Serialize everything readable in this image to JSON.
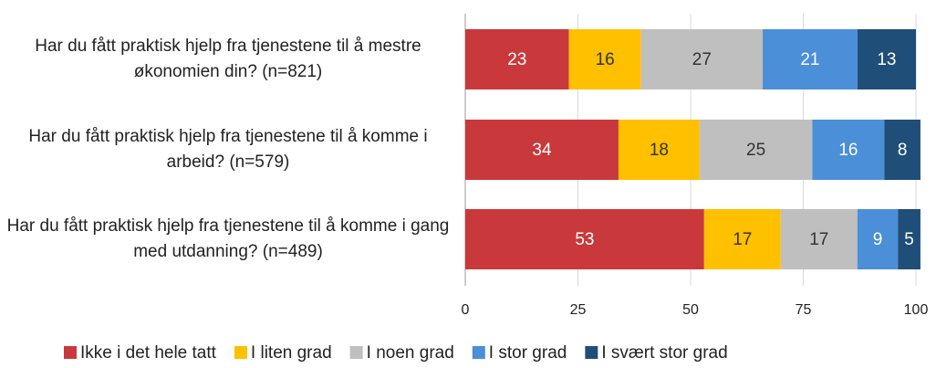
{
  "chart_data": {
    "type": "stacked-barh",
    "categories": [
      "Har du fått praktisk hjelp fra tjenestene til å mestre økonomien din? (n=821)",
      "Har du fått praktisk hjelp fra tjenestene til å komme i arbeid? (n=579)",
      "Har du fått praktisk hjelp fra tjenestene til å komme i gang med utdanning? (n=489)"
    ],
    "series": [
      {
        "name": "Ikke i det hele tatt",
        "color": "#c9393b",
        "values": [
          23,
          34,
          53
        ]
      },
      {
        "name": "I liten grad",
        "color": "#ffc000",
        "values": [
          16,
          18,
          17
        ]
      },
      {
        "name": "I noen grad",
        "color": "#bfbfbf",
        "values": [
          27,
          25,
          17
        ]
      },
      {
        "name": "I stor grad",
        "color": "#4a8fd8",
        "values": [
          21,
          16,
          9
        ]
      },
      {
        "name": "I svært stor grad",
        "color": "#1f4e79",
        "values": [
          13,
          8,
          5
        ]
      }
    ],
    "xlim": [
      0,
      100
    ],
    "xticks": [
      0,
      25,
      50,
      75,
      100
    ],
    "grid": true
  }
}
